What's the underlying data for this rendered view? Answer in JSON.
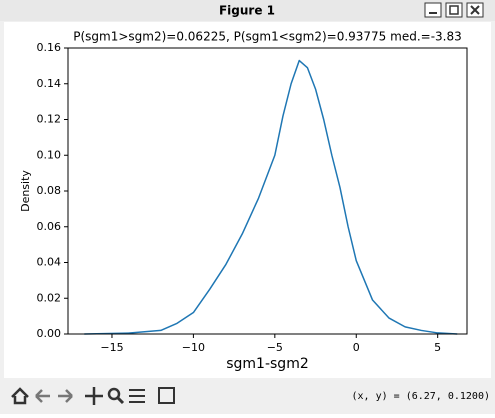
{
  "window": {
    "title": "Figure 1",
    "status": "(x, y) = (6.27, 0.1200)"
  },
  "chart_data": {
    "type": "line",
    "title": "P(sgm1>sgm2)=0.06225, P(sgm1<sgm2)=0.93775  med.=-3.83",
    "xlabel": "sgm1-sgm2",
    "ylabel": "Density",
    "x": [
      -16.7,
      -14,
      -12,
      -11,
      -10,
      -9,
      -8,
      -7,
      -6,
      -5,
      -4.5,
      -4,
      -3.5,
      -3,
      -2.5,
      -2,
      -1.5,
      -1,
      -0.5,
      0,
      1,
      2,
      3,
      4,
      5,
      6.2
    ],
    "values": [
      0,
      0.0005,
      0.002,
      0.006,
      0.012,
      0.025,
      0.039,
      0.056,
      0.076,
      0.1,
      0.122,
      0.14,
      0.153,
      0.149,
      0.137,
      0.12,
      0.1,
      0.082,
      0.06,
      0.041,
      0.019,
      0.009,
      0.004,
      0.002,
      0.0006,
      0
    ],
    "color": "#1f77b4",
    "xlim": [
      -17.7,
      6.8
    ],
    "ylim": [
      0,
      0.16
    ],
    "xticks": [
      {
        "value": -15,
        "label": "−15"
      },
      {
        "value": -10,
        "label": "−10"
      },
      {
        "value": -5,
        "label": "−5"
      },
      0,
      5
    ],
    "yticks": [
      {
        "value": 0,
        "label": "0.00"
      },
      {
        "value": 0.02,
        "label": "0.02"
      },
      {
        "value": 0.04,
        "label": "0.04"
      },
      {
        "value": 0.06,
        "label": "0.06"
      },
      {
        "value": 0.08,
        "label": "0.08"
      },
      {
        "value": 0.1,
        "label": "0.10"
      },
      {
        "value": 0.12,
        "label": "0.12"
      },
      {
        "value": 0.14,
        "label": "0.14"
      },
      {
        "value": 0.16,
        "label": "0.16"
      }
    ]
  }
}
